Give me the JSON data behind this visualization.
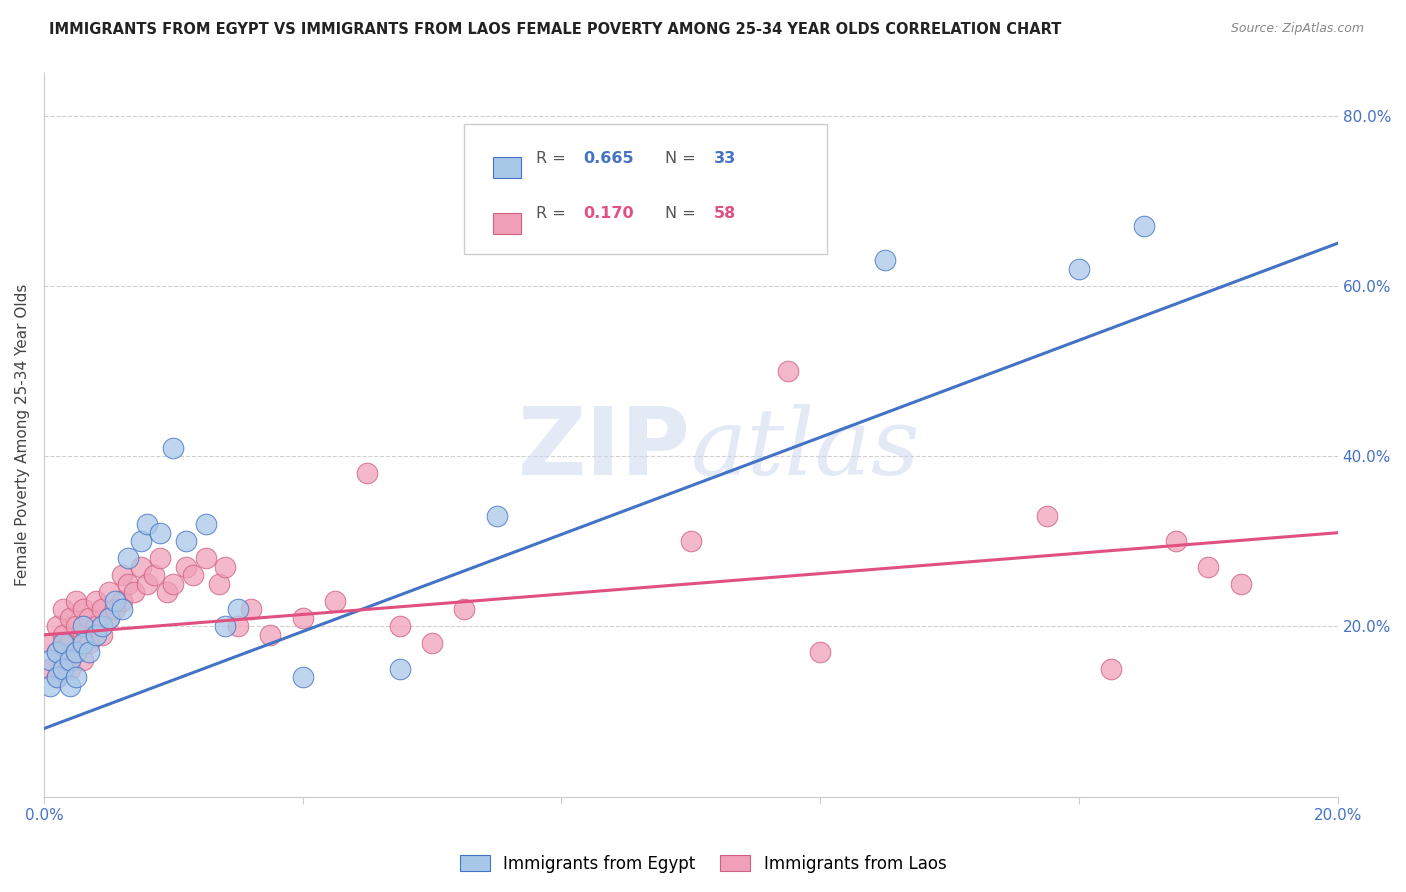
{
  "title": "IMMIGRANTS FROM EGYPT VS IMMIGRANTS FROM LAOS FEMALE POVERTY AMONG 25-34 YEAR OLDS CORRELATION CHART",
  "source": "Source: ZipAtlas.com",
  "ylabel": "Female Poverty Among 25-34 Year Olds",
  "xlim": [
    0.0,
    0.2
  ],
  "ylim": [
    0.0,
    0.85
  ],
  "ytick_labels_right": [
    "80.0%",
    "60.0%",
    "40.0%",
    "20.0%"
  ],
  "ytick_vals_right": [
    0.8,
    0.6,
    0.4,
    0.2
  ],
  "watermark": "ZIPatlas",
  "color_egypt": "#a8c8e8",
  "color_laos": "#f0a0b8",
  "color_line_egypt": "#4472c4",
  "color_line_laos": "#e05080",
  "background_color": "#ffffff",
  "grid_color": "#d0d0d0",
  "egypt_x": [
    0.001,
    0.001,
    0.002,
    0.002,
    0.003,
    0.003,
    0.004,
    0.004,
    0.005,
    0.005,
    0.006,
    0.006,
    0.007,
    0.008,
    0.009,
    0.01,
    0.011,
    0.012,
    0.013,
    0.015,
    0.016,
    0.018,
    0.02,
    0.022,
    0.025,
    0.028,
    0.03,
    0.04,
    0.055,
    0.07,
    0.13,
    0.16,
    0.17
  ],
  "egypt_y": [
    0.13,
    0.16,
    0.14,
    0.17,
    0.15,
    0.18,
    0.13,
    0.16,
    0.14,
    0.17,
    0.2,
    0.18,
    0.17,
    0.19,
    0.2,
    0.21,
    0.23,
    0.22,
    0.28,
    0.3,
    0.32,
    0.31,
    0.41,
    0.3,
    0.32,
    0.2,
    0.22,
    0.14,
    0.15,
    0.33,
    0.63,
    0.62,
    0.67
  ],
  "laos_x": [
    0.001,
    0.001,
    0.002,
    0.002,
    0.002,
    0.003,
    0.003,
    0.003,
    0.004,
    0.004,
    0.004,
    0.005,
    0.005,
    0.005,
    0.006,
    0.006,
    0.006,
    0.007,
    0.007,
    0.008,
    0.008,
    0.009,
    0.009,
    0.01,
    0.01,
    0.011,
    0.012,
    0.012,
    0.013,
    0.014,
    0.015,
    0.016,
    0.017,
    0.018,
    0.019,
    0.02,
    0.022,
    0.023,
    0.025,
    0.027,
    0.028,
    0.03,
    0.032,
    0.035,
    0.04,
    0.045,
    0.05,
    0.055,
    0.06,
    0.065,
    0.1,
    0.115,
    0.12,
    0.155,
    0.165,
    0.175,
    0.18,
    0.185
  ],
  "laos_y": [
    0.15,
    0.18,
    0.14,
    0.17,
    0.2,
    0.16,
    0.19,
    0.22,
    0.15,
    0.18,
    0.21,
    0.17,
    0.2,
    0.23,
    0.16,
    0.19,
    0.22,
    0.18,
    0.21,
    0.2,
    0.23,
    0.19,
    0.22,
    0.21,
    0.24,
    0.22,
    0.23,
    0.26,
    0.25,
    0.24,
    0.27,
    0.25,
    0.26,
    0.28,
    0.24,
    0.25,
    0.27,
    0.26,
    0.28,
    0.25,
    0.27,
    0.2,
    0.22,
    0.19,
    0.21,
    0.23,
    0.38,
    0.2,
    0.18,
    0.22,
    0.3,
    0.5,
    0.17,
    0.33,
    0.15,
    0.3,
    0.27,
    0.25
  ]
}
